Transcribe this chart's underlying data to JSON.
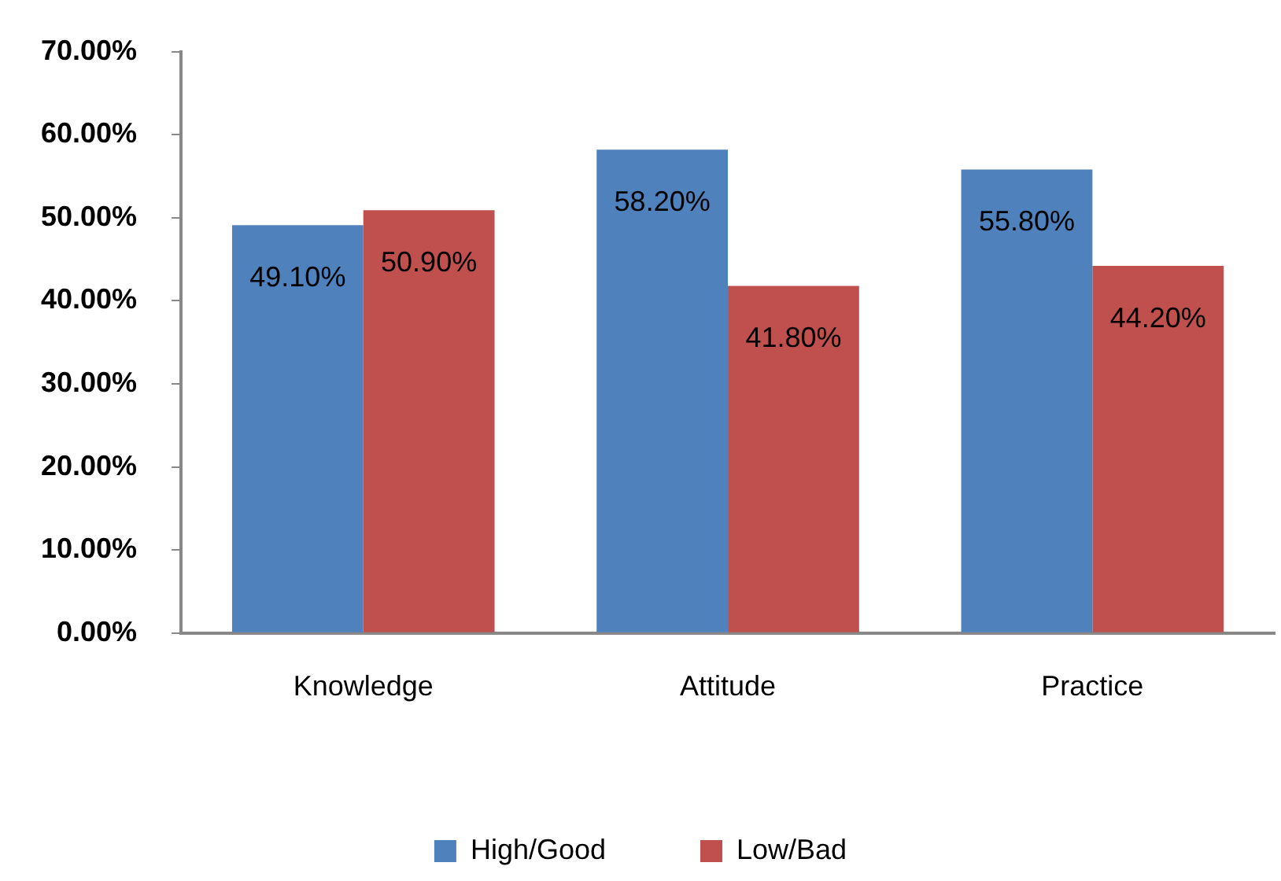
{
  "chart_data": {
    "type": "bar",
    "categories": [
      "Knowledge",
      "Attitude",
      "Practice"
    ],
    "series": [
      {
        "name": "High/Good",
        "color": "#4f81bd",
        "values": [
          49.1,
          58.2,
          55.8
        ],
        "value_labels": [
          "49.10%",
          "58.20%",
          "55.80%"
        ]
      },
      {
        "name": "Low/Bad",
        "color": "#c0504d",
        "values": [
          50.9,
          41.8,
          44.2
        ],
        "value_labels": [
          "50.90%",
          "41.80%",
          "44.20%"
        ]
      }
    ],
    "ylim": [
      0,
      70
    ],
    "yticks": [
      {
        "value": 0,
        "label": "0.00%"
      },
      {
        "value": 10,
        "label": "10.00%"
      },
      {
        "value": 20,
        "label": "20.00%"
      },
      {
        "value": 30,
        "label": "30.00%"
      },
      {
        "value": 40,
        "label": "40.00%"
      },
      {
        "value": 50,
        "label": "50.00%"
      },
      {
        "value": 60,
        "label": "60.00%"
      },
      {
        "value": 70,
        "label": "70.00%"
      }
    ],
    "legend": "bottom"
  }
}
